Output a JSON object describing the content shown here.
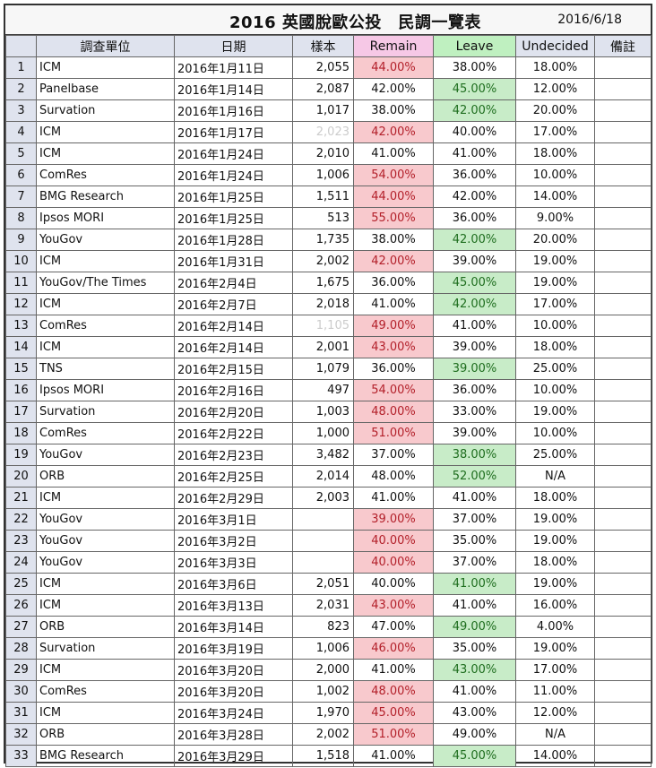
{
  "title": "2016 英國脫歐公投　民調一覽表",
  "date": "2016/6/18",
  "headers": [
    "",
    "調查單位",
    "日期",
    "樣本",
    "Remain",
    "Leave",
    "Undecided",
    "備註"
  ],
  "colors": {
    "remain_highlight": "#f8c9cd",
    "leave_highlight": "#c8ecc8",
    "remain_header": "#f6c8e6",
    "leave_header": "#bff0c0",
    "header_bg": "#dfe3ee"
  },
  "rows": [
    {
      "n": "1",
      "org": "ICM",
      "date": "2016年1月11日",
      "sample": "2,055",
      "remain": "44.00%",
      "leave": "38.00%",
      "undecided": "18.00%",
      "note": "",
      "hl": "remain"
    },
    {
      "n": "2",
      "org": "Panelbase",
      "date": "2016年1月14日",
      "sample": "2,087",
      "remain": "42.00%",
      "leave": "45.00%",
      "undecided": "12.00%",
      "note": "",
      "hl": "leave"
    },
    {
      "n": "3",
      "org": "Survation",
      "date": "2016年1月16日",
      "sample": "1,017",
      "remain": "38.00%",
      "leave": "42.00%",
      "undecided": "20.00%",
      "note": "",
      "hl": "leave"
    },
    {
      "n": "4",
      "org": "ICM",
      "date": "2016年1月17日",
      "sample": "2,023",
      "remain": "42.00%",
      "leave": "40.00%",
      "undecided": "17.00%",
      "note": "",
      "hl": "remain",
      "faint": true
    },
    {
      "n": "5",
      "org": "ICM",
      "date": "2016年1月24日",
      "sample": "2,010",
      "remain": "41.00%",
      "leave": "41.00%",
      "undecided": "18.00%",
      "note": "",
      "hl": ""
    },
    {
      "n": "6",
      "org": "ComRes",
      "date": "2016年1月24日",
      "sample": "1,006",
      "remain": "54.00%",
      "leave": "36.00%",
      "undecided": "10.00%",
      "note": "",
      "hl": "remain"
    },
    {
      "n": "7",
      "org": "BMG Research",
      "date": "2016年1月25日",
      "sample": "1,511",
      "remain": "44.00%",
      "leave": "42.00%",
      "undecided": "14.00%",
      "note": "",
      "hl": "remain"
    },
    {
      "n": "8",
      "org": "Ipsos MORI",
      "date": "2016年1月25日",
      "sample": "513",
      "remain": "55.00%",
      "leave": "36.00%",
      "undecided": "9.00%",
      "note": "",
      "hl": "remain"
    },
    {
      "n": "9",
      "org": "YouGov",
      "date": "2016年1月28日",
      "sample": "1,735",
      "remain": "38.00%",
      "leave": "42.00%",
      "undecided": "20.00%",
      "note": "",
      "hl": "leave"
    },
    {
      "n": "10",
      "org": "ICM",
      "date": "2016年1月31日",
      "sample": "2,002",
      "remain": "42.00%",
      "leave": "39.00%",
      "undecided": "19.00%",
      "note": "",
      "hl": "remain"
    },
    {
      "n": "11",
      "org": "YouGov/The Times",
      "date": "2016年2月4日",
      "sample": "1,675",
      "remain": "36.00%",
      "leave": "45.00%",
      "undecided": "19.00%",
      "note": "",
      "hl": "leave"
    },
    {
      "n": "12",
      "org": "ICM",
      "date": "2016年2月7日",
      "sample": "2,018",
      "remain": "41.00%",
      "leave": "42.00%",
      "undecided": "17.00%",
      "note": "",
      "hl": "leave"
    },
    {
      "n": "13",
      "org": "ComRes",
      "date": "2016年2月14日",
      "sample": "1,105",
      "remain": "49.00%",
      "leave": "41.00%",
      "undecided": "10.00%",
      "note": "",
      "hl": "remain",
      "faint": true
    },
    {
      "n": "14",
      "org": "ICM",
      "date": "2016年2月14日",
      "sample": "2,001",
      "remain": "43.00%",
      "leave": "39.00%",
      "undecided": "18.00%",
      "note": "",
      "hl": "remain"
    },
    {
      "n": "15",
      "org": "TNS",
      "date": "2016年2月15日",
      "sample": "1,079",
      "remain": "36.00%",
      "leave": "39.00%",
      "undecided": "25.00%",
      "note": "",
      "hl": "leave"
    },
    {
      "n": "16",
      "org": "Ipsos MORI",
      "date": "2016年2月16日",
      "sample": "497",
      "remain": "54.00%",
      "leave": "36.00%",
      "undecided": "10.00%",
      "note": "",
      "hl": "remain"
    },
    {
      "n": "17",
      "org": "Survation",
      "date": "2016年2月20日",
      "sample": "1,003",
      "remain": "48.00%",
      "leave": "33.00%",
      "undecided": "19.00%",
      "note": "",
      "hl": "remain"
    },
    {
      "n": "18",
      "org": "ComRes",
      "date": "2016年2月22日",
      "sample": "1,000",
      "remain": "51.00%",
      "leave": "39.00%",
      "undecided": "10.00%",
      "note": "",
      "hl": "remain"
    },
    {
      "n": "19",
      "org": "YouGov",
      "date": "2016年2月23日",
      "sample": "3,482",
      "remain": "37.00%",
      "leave": "38.00%",
      "undecided": "25.00%",
      "note": "",
      "hl": "leave"
    },
    {
      "n": "20",
      "org": "ORB",
      "date": "2016年2月25日",
      "sample": "2,014",
      "remain": "48.00%",
      "leave": "52.00%",
      "undecided": "N/A",
      "note": "",
      "hl": "leave"
    },
    {
      "n": "21",
      "org": "ICM",
      "date": "2016年2月29日",
      "sample": "2,003",
      "remain": "41.00%",
      "leave": "41.00%",
      "undecided": "18.00%",
      "note": "",
      "hl": ""
    },
    {
      "n": "22",
      "org": "YouGov",
      "date": "2016年3月1日",
      "sample": "",
      "remain": "39.00%",
      "leave": "37.00%",
      "undecided": "19.00%",
      "note": "",
      "hl": "remain"
    },
    {
      "n": "23",
      "org": "YouGov",
      "date": "2016年3月2日",
      "sample": "",
      "remain": "40.00%",
      "leave": "35.00%",
      "undecided": "19.00%",
      "note": "",
      "hl": "remain"
    },
    {
      "n": "24",
      "org": "YouGov",
      "date": "2016年3月3日",
      "sample": "",
      "remain": "40.00%",
      "leave": "37.00%",
      "undecided": "18.00%",
      "note": "",
      "hl": "remain"
    },
    {
      "n": "25",
      "org": "ICM",
      "date": "2016年3月6日",
      "sample": "2,051",
      "remain": "40.00%",
      "leave": "41.00%",
      "undecided": "19.00%",
      "note": "",
      "hl": "leave"
    },
    {
      "n": "26",
      "org": "ICM",
      "date": "2016年3月13日",
      "sample": "2,031",
      "remain": "43.00%",
      "leave": "41.00%",
      "undecided": "16.00%",
      "note": "",
      "hl": "remain"
    },
    {
      "n": "27",
      "org": "ORB",
      "date": "2016年3月14日",
      "sample": "823",
      "remain": "47.00%",
      "leave": "49.00%",
      "undecided": "4.00%",
      "note": "",
      "hl": "leave"
    },
    {
      "n": "28",
      "org": "Survation",
      "date": "2016年3月19日",
      "sample": "1,006",
      "remain": "46.00%",
      "leave": "35.00%",
      "undecided": "19.00%",
      "note": "",
      "hl": "remain"
    },
    {
      "n": "29",
      "org": "ICM",
      "date": "2016年3月20日",
      "sample": "2,000",
      "remain": "41.00%",
      "leave": "43.00%",
      "undecided": "17.00%",
      "note": "",
      "hl": "leave"
    },
    {
      "n": "30",
      "org": "ComRes",
      "date": "2016年3月20日",
      "sample": "1,002",
      "remain": "48.00%",
      "leave": "41.00%",
      "undecided": "11.00%",
      "note": "",
      "hl": "remain"
    },
    {
      "n": "31",
      "org": "ICM",
      "date": "2016年3月24日",
      "sample": "1,970",
      "remain": "45.00%",
      "leave": "43.00%",
      "undecided": "12.00%",
      "note": "",
      "hl": "remain"
    },
    {
      "n": "32",
      "org": "ORB",
      "date": "2016年3月28日",
      "sample": "2,002",
      "remain": "51.00%",
      "leave": "49.00%",
      "undecided": "N/A",
      "note": "",
      "hl": "remain"
    },
    {
      "n": "33",
      "org": "BMG Research",
      "date": "2016年3月29日",
      "sample": "1,518",
      "remain": "41.00%",
      "leave": "45.00%",
      "undecided": "14.00%",
      "note": "",
      "hl": "leave"
    }
  ]
}
